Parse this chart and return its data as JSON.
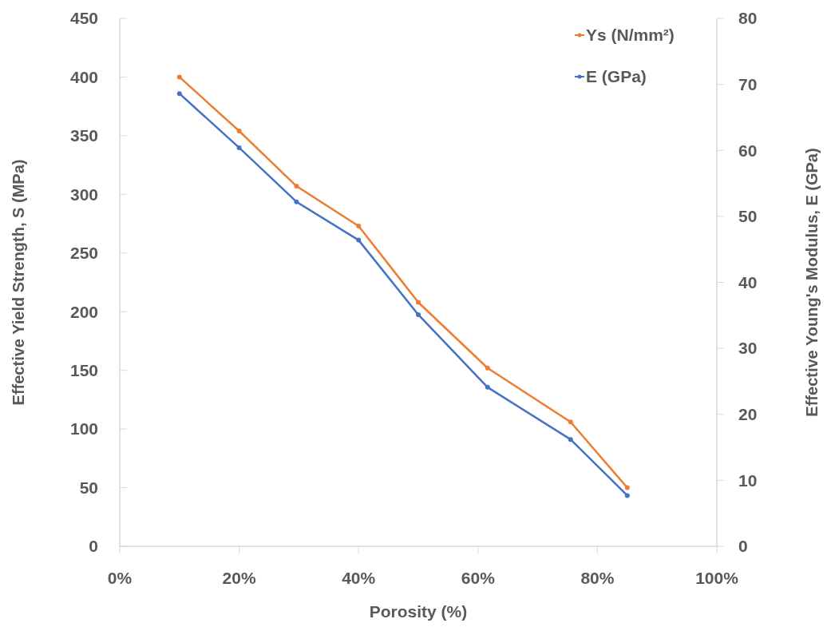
{
  "chart_data": {
    "type": "line",
    "xlabel": "Porosity (%)",
    "ylabel": "Effective Yield Strength, S (MPa)",
    "y2label": "Effective Young's Modulus, E (GPa)",
    "x": [
      10,
      20,
      29.6,
      40,
      50,
      61.6,
      75.5,
      85
    ],
    "series": [
      {
        "name": "Ys (N/mm²)",
        "color": "#ed7d31",
        "values": [
          400,
          354,
          307,
          273,
          208,
          152,
          106,
          50
        ]
      },
      {
        "name": "E (GPa)",
        "color": "#4472c4",
        "axis": "y2",
        "values": [
          68.6,
          60.4,
          52.2,
          46.4,
          35.1,
          24.1,
          16.2,
          7.7
        ]
      }
    ],
    "xlim": [
      0,
      100
    ],
    "xticks": [
      {
        "value": 0,
        "label": "0%"
      },
      {
        "value": 20,
        "label": "20%"
      },
      {
        "value": 40,
        "label": "40%"
      },
      {
        "value": 60,
        "label": "60%"
      },
      {
        "value": 80,
        "label": "80%"
      },
      {
        "value": 100,
        "label": "100%"
      }
    ],
    "ylim": [
      0,
      450
    ],
    "yticks": [
      0,
      50,
      100,
      150,
      200,
      250,
      300,
      350,
      400,
      450
    ],
    "y2lim": [
      0,
      80
    ],
    "y2ticks": [
      0,
      10,
      20,
      30,
      40,
      50,
      60,
      70,
      80
    ],
    "grid": false,
    "legend": "top right",
    "marker": "circle",
    "line_style": "solid"
  }
}
